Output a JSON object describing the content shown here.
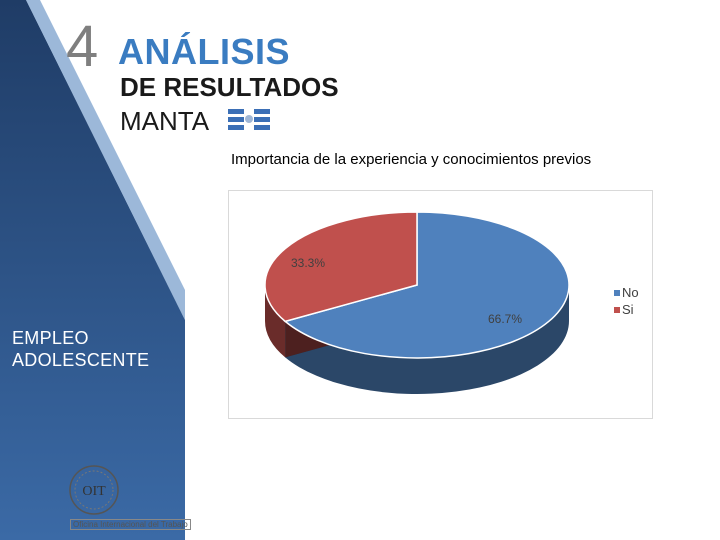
{
  "slide": {
    "number": "4",
    "title_line1": "ANÁLISIS",
    "title_line2": "DE RESULTADOS",
    "title_line3": "MANTA",
    "side_line1": "EMPLEO",
    "side_line2": "ADOLESCENTE",
    "logo_text": "OIT",
    "logo_caption": "Oficina Internacional del Trabajo"
  },
  "colors": {
    "sidebar_blue": "#2f4f7a",
    "sidebar_edge": "#3a6aa0",
    "title_blue": "#3a7cc1",
    "slice_no": "#4f81bd",
    "slice_si": "#c0504d",
    "flag_blue": "#3b6fb6"
  },
  "chart_data": {
    "type": "pie",
    "title": "Importancia de la experiencia y conocimientos previos",
    "categories": [
      "No",
      "Si"
    ],
    "values": [
      66.7,
      33.3
    ],
    "labels": [
      "66.7%",
      "33.3%"
    ],
    "legend_placement": "right",
    "style": "3d"
  }
}
